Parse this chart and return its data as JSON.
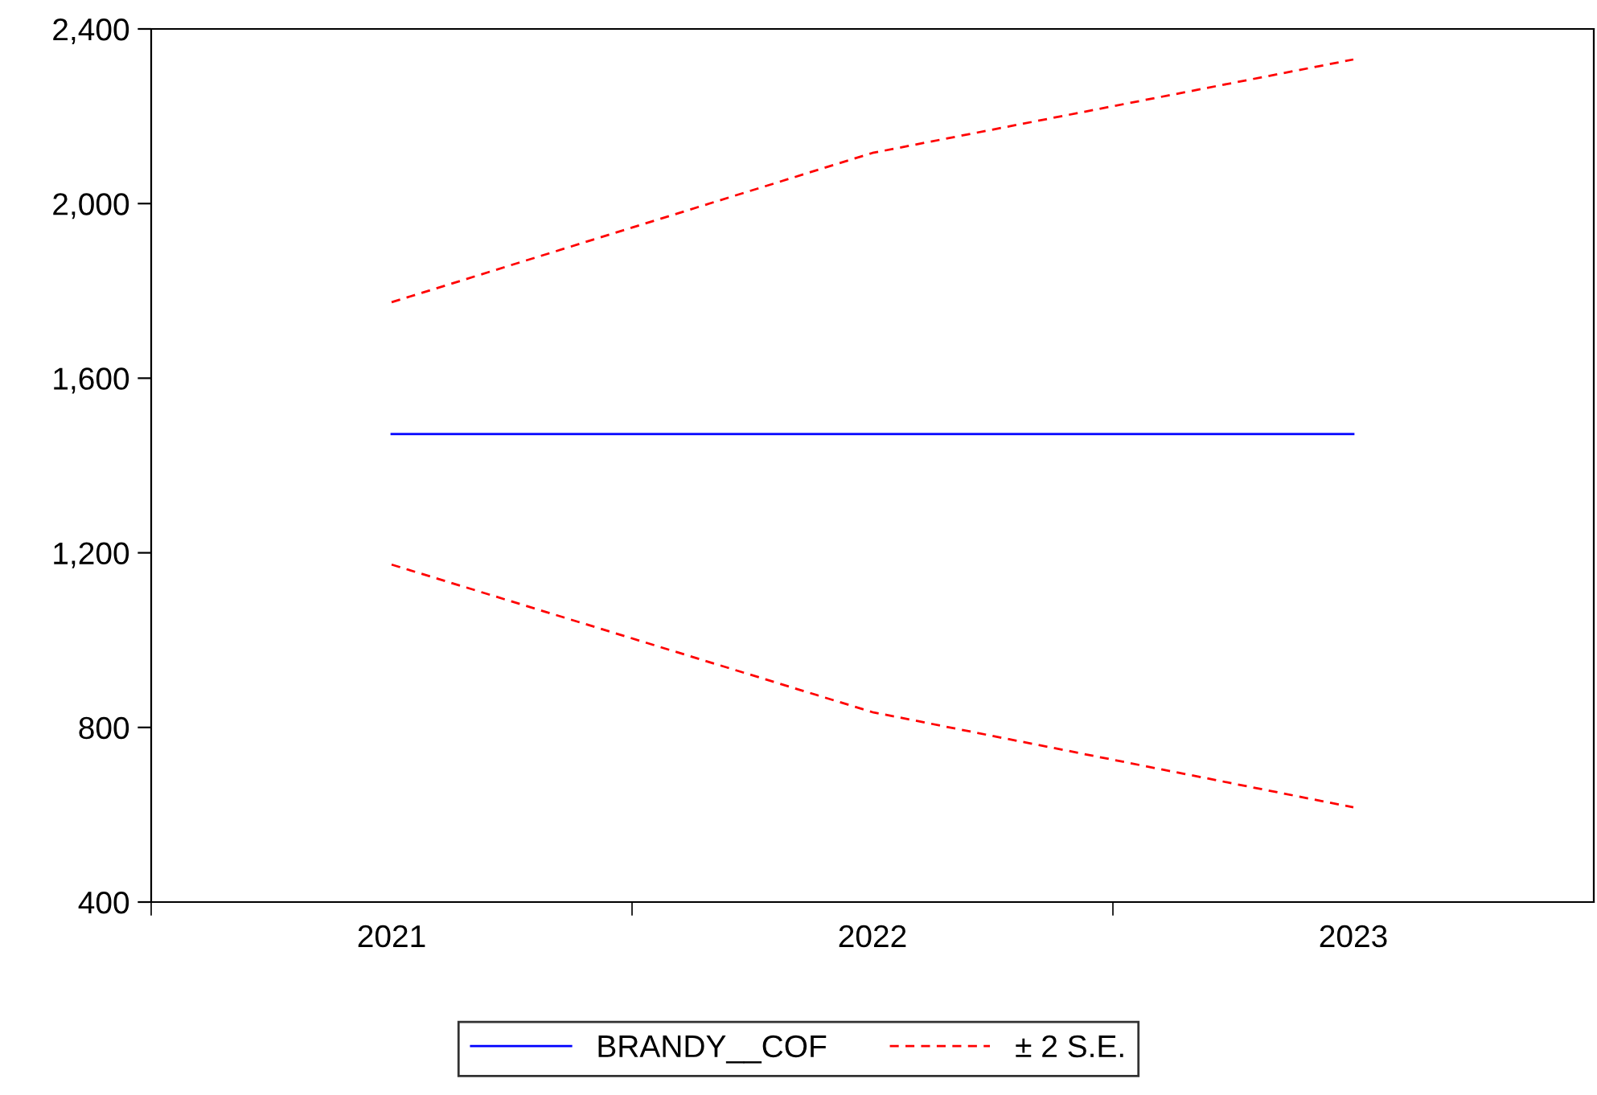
{
  "chart_data": {
    "type": "line",
    "categories": [
      "2021",
      "2022",
      "2023"
    ],
    "series": [
      {
        "name": "BRANDY__COF",
        "color": "#0000ff",
        "values": [
          1472,
          1472,
          1472
        ],
        "line_style": "solid"
      },
      {
        "name": "± 2 S.E.",
        "color": "#ff0000",
        "values": [
          1774,
          2116,
          2330
        ],
        "line_style": "dashed"
      },
      {
        "color": "#ff0000",
        "values": [
          1173,
          835,
          617
        ],
        "line_style": "dashed"
      }
    ],
    "ylim": [
      400,
      2400
    ],
    "yticks": [
      400,
      800,
      {
        "value": 1200,
        "label": "1,200"
      },
      {
        "value": 1600,
        "label": "1,600"
      },
      {
        "value": 2000,
        "label": "2,000"
      },
      {
        "value": 2400,
        "label": "2,400"
      }
    ],
    "grid": false,
    "legend": "bottom",
    "marker": "none"
  }
}
